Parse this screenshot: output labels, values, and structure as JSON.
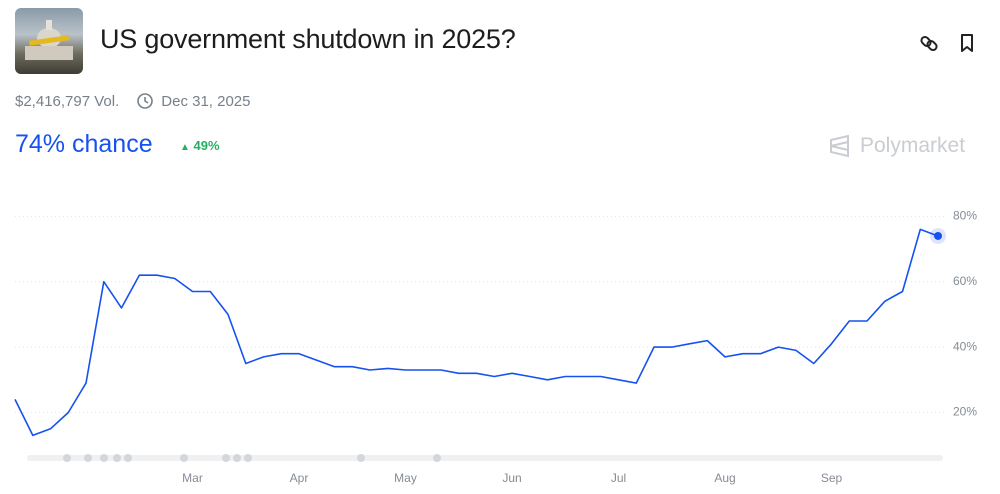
{
  "header": {
    "title": "US government shutdown in 2025?",
    "volume": "$2,416,797 Vol.",
    "end_date": "Dec 31, 2025",
    "chance": "74% chance",
    "change": "49%",
    "brand": "Polymarket"
  },
  "chart_data": {
    "type": "line",
    "categories": [
      null,
      null,
      null,
      null,
      null,
      null,
      null,
      null,
      null,
      null,
      "Mar",
      null,
      null,
      null,
      null,
      null,
      "Apr",
      null,
      null,
      null,
      null,
      null,
      "May",
      null,
      null,
      null,
      null,
      null,
      "Jun",
      null,
      null,
      null,
      null,
      null,
      "Jul",
      null,
      null,
      null,
      null,
      null,
      "Aug",
      null,
      null,
      null,
      null,
      null,
      "Sep",
      null,
      null,
      null,
      null,
      null,
      null
    ],
    "series": [
      {
        "color": "#1652f0",
        "values": [
          24,
          13,
          15,
          20,
          29,
          60,
          52,
          62,
          62,
          61,
          57,
          57,
          50,
          35,
          37,
          38,
          38,
          36,
          34,
          34,
          33,
          33.5,
          33,
          33,
          33,
          32,
          32,
          31,
          32,
          31,
          30,
          31,
          31,
          31,
          30,
          29,
          40,
          40,
          41,
          42,
          37,
          38,
          38,
          40,
          39,
          35,
          41,
          48,
          48,
          54,
          57,
          76,
          74
        ]
      }
    ],
    "ylim": [
      7,
      85
    ],
    "yticks": [
      {
        "value": 20,
        "label": "20%"
      },
      {
        "value": 40,
        "label": "40%"
      },
      {
        "value": 60,
        "label": "60%"
      },
      {
        "value": 80,
        "label": "80%"
      }
    ],
    "grid": true
  }
}
